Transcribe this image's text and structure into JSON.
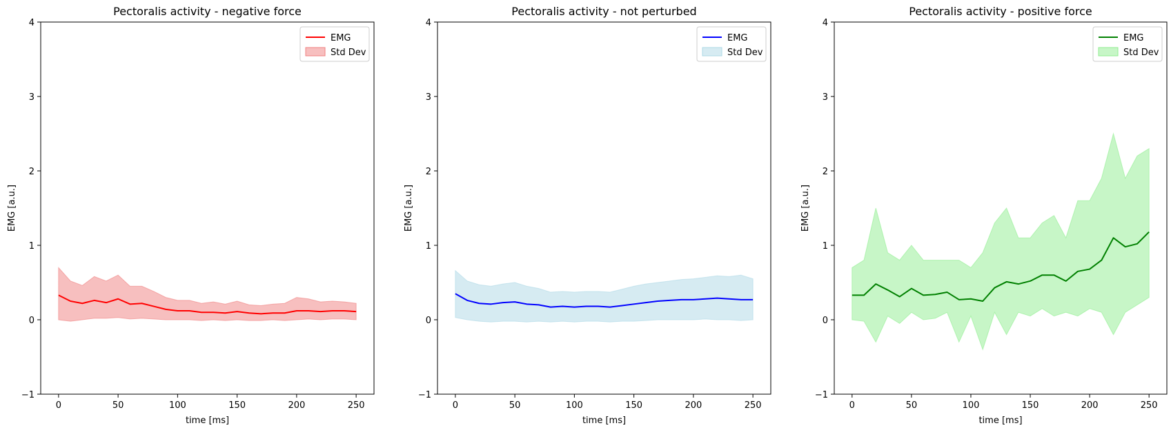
{
  "chart_data": [
    {
      "type": "line",
      "title": "Pectoralis activity - negative force",
      "xlabel": "time [ms]",
      "ylabel": "EMG [a.u.]",
      "xlim": [
        -15,
        265
      ],
      "ylim": [
        -1,
        4
      ],
      "xticks": [
        0,
        50,
        100,
        150,
        200,
        250
      ],
      "yticks": [
        -1,
        0,
        1,
        2,
        3,
        4
      ],
      "legend": {
        "position": "upper right",
        "entries": [
          "EMG",
          "Std Dev"
        ]
      },
      "colors": {
        "line": "#ff0000",
        "band": "#f08080"
      },
      "series": [
        {
          "name": "EMG",
          "x": [
            0,
            10,
            20,
            30,
            40,
            50,
            60,
            70,
            80,
            90,
            100,
            110,
            120,
            130,
            140,
            150,
            160,
            170,
            180,
            190,
            200,
            210,
            220,
            230,
            240,
            250
          ],
          "y": [
            0.33,
            0.25,
            0.22,
            0.26,
            0.23,
            0.28,
            0.21,
            0.22,
            0.18,
            0.14,
            0.12,
            0.12,
            0.1,
            0.1,
            0.09,
            0.11,
            0.09,
            0.08,
            0.09,
            0.09,
            0.12,
            0.12,
            0.11,
            0.12,
            0.12,
            0.11
          ]
        },
        {
          "name": "Std Dev",
          "x": [
            0,
            10,
            20,
            30,
            40,
            50,
            60,
            70,
            80,
            90,
            100,
            110,
            120,
            130,
            140,
            150,
            160,
            170,
            180,
            190,
            200,
            210,
            220,
            230,
            240,
            250
          ],
          "lower": [
            0.0,
            -0.02,
            0.0,
            0.02,
            0.02,
            0.03,
            0.01,
            0.02,
            0.01,
            0.0,
            0.0,
            0.0,
            -0.01,
            0.0,
            -0.01,
            0.0,
            -0.01,
            -0.01,
            0.0,
            -0.01,
            0.0,
            0.01,
            0.0,
            0.01,
            0.01,
            0.0
          ],
          "upper": [
            0.7,
            0.52,
            0.46,
            0.58,
            0.52,
            0.6,
            0.45,
            0.45,
            0.38,
            0.3,
            0.26,
            0.26,
            0.22,
            0.24,
            0.21,
            0.25,
            0.2,
            0.19,
            0.21,
            0.22,
            0.3,
            0.28,
            0.24,
            0.25,
            0.24,
            0.22
          ]
        }
      ]
    },
    {
      "type": "line",
      "title": "Pectoralis activity - not perturbed",
      "xlabel": "time [ms]",
      "ylabel": "EMG [a.u.]",
      "xlim": [
        -15,
        265
      ],
      "ylim": [
        -1,
        4
      ],
      "xticks": [
        0,
        50,
        100,
        150,
        200,
        250
      ],
      "yticks": [
        -1,
        0,
        1,
        2,
        3,
        4
      ],
      "legend": {
        "position": "upper right",
        "entries": [
          "EMG",
          "Std Dev"
        ]
      },
      "colors": {
        "line": "#0000ff",
        "band": "#add8e6"
      },
      "series": [
        {
          "name": "EMG",
          "x": [
            0,
            10,
            20,
            30,
            40,
            50,
            60,
            70,
            80,
            90,
            100,
            110,
            120,
            130,
            140,
            150,
            160,
            170,
            180,
            190,
            200,
            210,
            220,
            230,
            240,
            250
          ],
          "y": [
            0.35,
            0.26,
            0.22,
            0.21,
            0.23,
            0.24,
            0.21,
            0.2,
            0.17,
            0.18,
            0.17,
            0.18,
            0.18,
            0.17,
            0.19,
            0.21,
            0.23,
            0.25,
            0.26,
            0.27,
            0.27,
            0.28,
            0.29,
            0.28,
            0.27,
            0.27
          ]
        },
        {
          "name": "Std Dev",
          "x": [
            0,
            10,
            20,
            30,
            40,
            50,
            60,
            70,
            80,
            90,
            100,
            110,
            120,
            130,
            140,
            150,
            160,
            170,
            180,
            190,
            200,
            210,
            220,
            230,
            240,
            250
          ],
          "lower": [
            0.03,
            0.0,
            -0.02,
            -0.03,
            -0.02,
            -0.02,
            -0.03,
            -0.02,
            -0.03,
            -0.02,
            -0.03,
            -0.02,
            -0.02,
            -0.03,
            -0.02,
            -0.02,
            -0.01,
            0.0,
            0.0,
            0.0,
            0.0,
            0.01,
            0.0,
            0.0,
            -0.01,
            0.0
          ],
          "upper": [
            0.66,
            0.52,
            0.47,
            0.45,
            0.48,
            0.5,
            0.45,
            0.42,
            0.37,
            0.38,
            0.37,
            0.38,
            0.38,
            0.37,
            0.41,
            0.45,
            0.48,
            0.5,
            0.52,
            0.54,
            0.55,
            0.57,
            0.59,
            0.58,
            0.6,
            0.55
          ]
        }
      ]
    },
    {
      "type": "line",
      "title": "Pectoralis activity - positive force",
      "xlabel": "time [ms]",
      "ylabel": "EMG [a.u.]",
      "xlim": [
        -15,
        265
      ],
      "ylim": [
        -1,
        4
      ],
      "xticks": [
        0,
        50,
        100,
        150,
        200,
        250
      ],
      "yticks": [
        -1,
        0,
        1,
        2,
        3,
        4
      ],
      "legend": {
        "position": "upper right",
        "entries": [
          "EMG",
          "Std Dev"
        ]
      },
      "colors": {
        "line": "#008000",
        "band": "#90ee90"
      },
      "series": [
        {
          "name": "EMG",
          "x": [
            0,
            10,
            20,
            30,
            40,
            50,
            60,
            70,
            80,
            90,
            100,
            110,
            120,
            130,
            140,
            150,
            160,
            170,
            180,
            190,
            200,
            210,
            220,
            230,
            240,
            250
          ],
          "y": [
            0.33,
            0.33,
            0.48,
            0.4,
            0.31,
            0.42,
            0.33,
            0.34,
            0.37,
            0.27,
            0.28,
            0.25,
            0.43,
            0.51,
            0.48,
            0.52,
            0.6,
            0.6,
            0.52,
            0.65,
            0.68,
            0.8,
            1.1,
            0.98,
            1.02,
            1.18
          ]
        },
        {
          "name": "Std Dev",
          "x": [
            0,
            10,
            20,
            30,
            40,
            50,
            60,
            70,
            80,
            90,
            100,
            110,
            120,
            130,
            140,
            150,
            160,
            170,
            180,
            190,
            200,
            210,
            220,
            230,
            240,
            250
          ],
          "lower": [
            0.0,
            -0.02,
            -0.3,
            0.05,
            -0.05,
            0.1,
            0.0,
            0.02,
            0.1,
            -0.3,
            0.05,
            -0.4,
            0.1,
            -0.2,
            0.1,
            0.05,
            0.15,
            0.05,
            0.1,
            0.05,
            0.15,
            0.1,
            -0.2,
            0.1,
            0.2,
            0.3
          ],
          "upper": [
            0.7,
            0.8,
            1.5,
            0.9,
            0.8,
            1.0,
            0.8,
            0.8,
            0.8,
            0.8,
            0.7,
            0.9,
            1.3,
            1.5,
            1.1,
            1.1,
            1.3,
            1.4,
            1.1,
            1.6,
            1.6,
            1.9,
            2.5,
            1.9,
            2.2,
            2.3
          ]
        }
      ]
    }
  ]
}
